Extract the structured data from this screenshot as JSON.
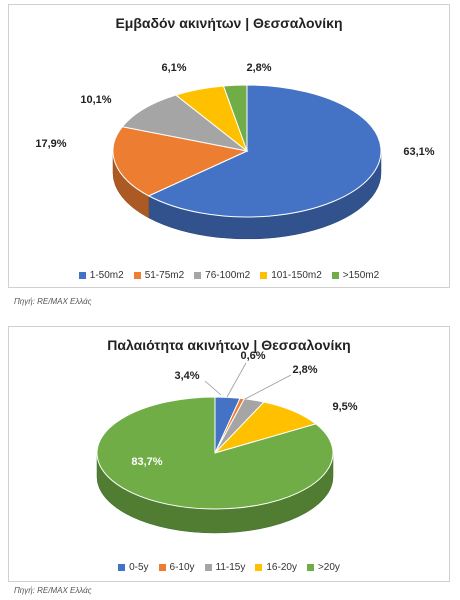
{
  "charts": [
    {
      "type": "pie",
      "title": "Εμβαδόν ακινήτων | Θεσσαλονίκη",
      "source": "Πηγή: RE/MAX Ελλάς",
      "legend_position": "bottom",
      "slices": [
        {
          "label": "1-50m2",
          "value": 63.1,
          "display": "63,1%",
          "color": "#4472C4"
        },
        {
          "label": "51-75m2",
          "value": 17.9,
          "display": "17,9%",
          "color": "#ED7D31"
        },
        {
          "label": "76-100m2",
          "value": 10.1,
          "display": "10,1%",
          "color": "#A5A5A5"
        },
        {
          "label": "101-150m2",
          "value": 6.1,
          "display": "6,1%",
          "color": "#FFC000"
        },
        {
          "label": ">150m2",
          "value": 2.8,
          "display": "2,8%",
          "color": "#70AD47"
        }
      ]
    },
    {
      "type": "pie",
      "title": "Παλαιότητα ακινήτων | Θεσσαλονίκη",
      "source": "Πηγή: RE/MAX Ελλάς",
      "legend_position": "bottom",
      "slices": [
        {
          "label": "0-5y",
          "value": 3.4,
          "display": "3,4%",
          "color": "#4472C4"
        },
        {
          "label": "6-10y",
          "value": 0.6,
          "display": "0,6%",
          "color": "#ED7D31"
        },
        {
          "label": "11-15y",
          "value": 2.8,
          "display": "2,8%",
          "color": "#A5A5A5"
        },
        {
          "label": "16-20y",
          "value": 9.5,
          "display": "9,5%",
          "color": "#FFC000"
        },
        {
          "label": ">20y",
          "value": 83.7,
          "display": "83,7%",
          "color": "#70AD47"
        }
      ]
    }
  ]
}
